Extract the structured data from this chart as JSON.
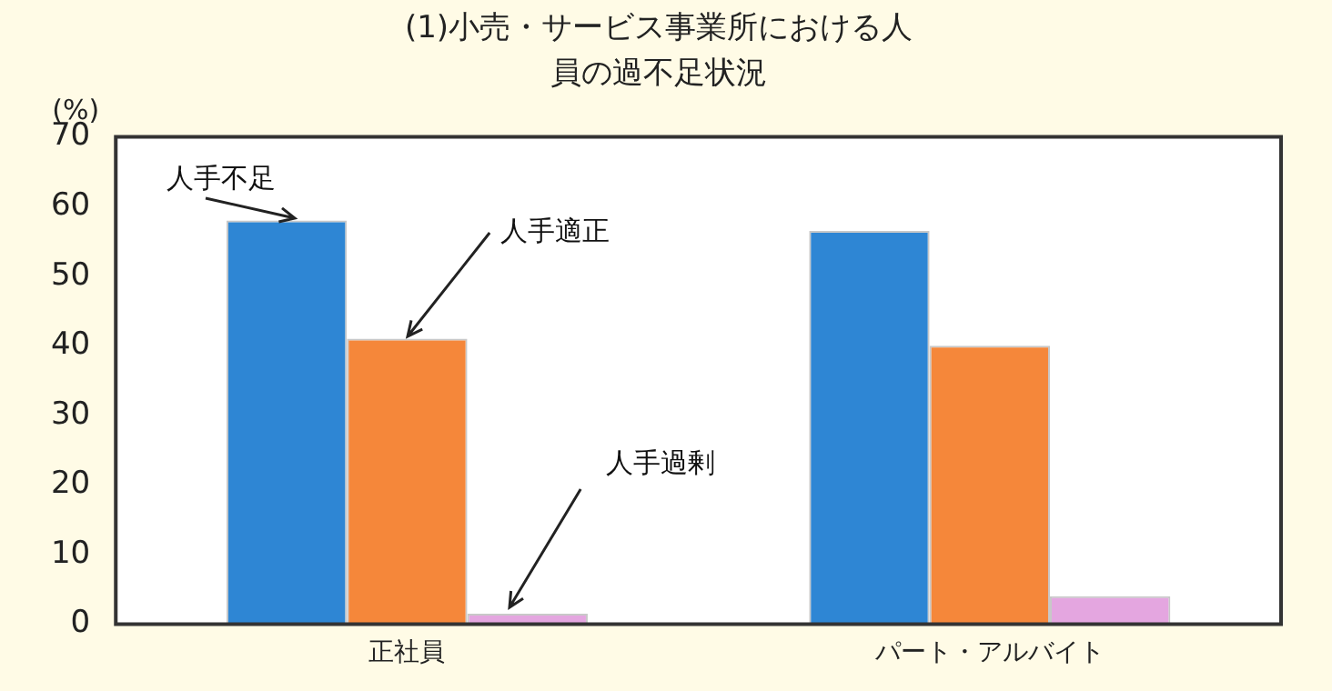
{
  "chart_data": {
    "type": "bar",
    "title": "(1)小売・サービス事業所における人員の過不足状況",
    "ylabel": "(%)",
    "categories": [
      "正社員",
      "パート・アルバイト"
    ],
    "series": [
      {
        "name": "人手不足",
        "color": "#2e86d4",
        "values": [
          58,
          56.5
        ]
      },
      {
        "name": "人手適正",
        "color": "#f5873a",
        "values": [
          41,
          40
        ]
      },
      {
        "name": "人手過剰",
        "color": "#e4a6e0",
        "values": [
          1.5,
          4
        ]
      }
    ],
    "ylim": [
      0,
      70
    ],
    "yticks": [
      0,
      10,
      20,
      30,
      40,
      50,
      60,
      70
    ],
    "grid": false,
    "legend": false
  }
}
